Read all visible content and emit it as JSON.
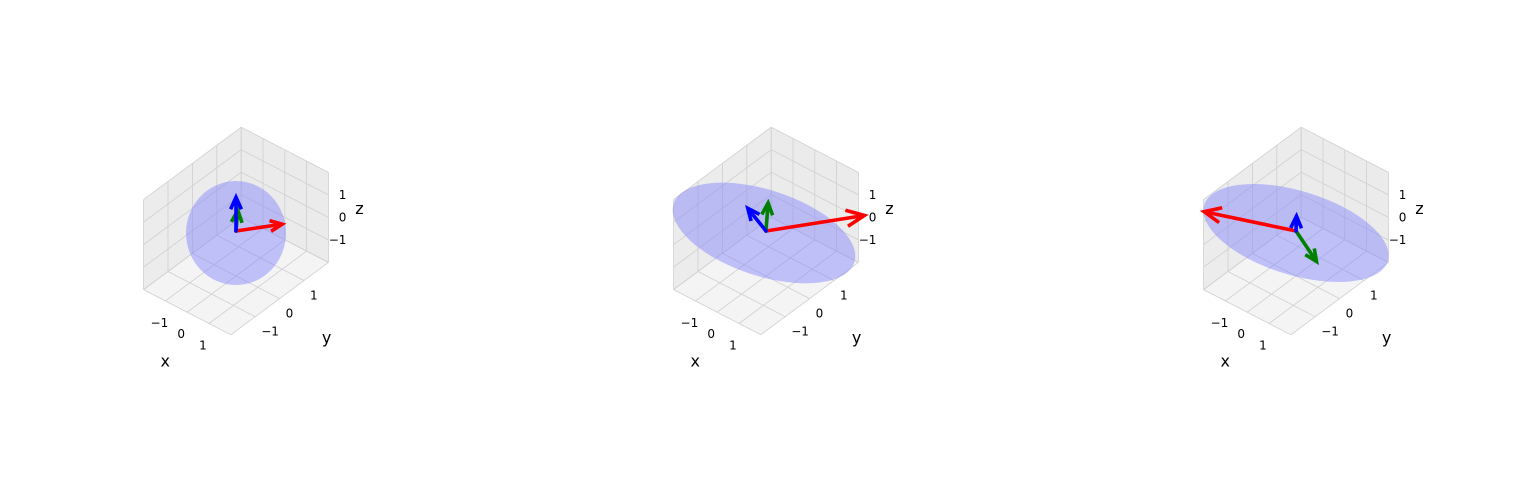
{
  "chart_data": [
    {
      "type": "3d-quiver-ellipsoid",
      "xlabel": "x",
      "ylabel": "y",
      "zlabel": "z",
      "x_ticks": [
        "−1",
        "0",
        "1"
      ],
      "y_ticks": [
        "−1",
        "0",
        "1"
      ],
      "z_ticks": [
        "−1",
        "0",
        "1"
      ],
      "xlim": [
        -2,
        2
      ],
      "ylim": [
        -2,
        2
      ],
      "zlim": [
        -2,
        2
      ],
      "grid": true,
      "ellipsoid_color": "#8080ff",
      "vectors": [
        {
          "color": "#ff0000",
          "components": [
            1,
            1,
            0
          ]
        },
        {
          "color": "#008000",
          "components": [
            -0.7,
            0.7,
            0
          ]
        },
        {
          "color": "#0000ff",
          "components": [
            0,
            0,
            1.5
          ]
        }
      ]
    },
    {
      "type": "3d-quiver-ellipsoid",
      "xlabel": "x",
      "ylabel": "y",
      "zlabel": "z",
      "x_ticks": [
        "−1",
        "0",
        "1"
      ],
      "y_ticks": [
        "−1",
        "0",
        "1"
      ],
      "z_ticks": [
        "−1",
        "0",
        "1"
      ],
      "xlim": [
        -2,
        2
      ],
      "ylim": [
        -2,
        2
      ],
      "zlim": [
        -2,
        2
      ],
      "grid": true,
      "ellipsoid_color": "#8080ff",
      "vectors": [
        {
          "color": "#ff0000",
          "components": [
            2.5,
            1.8,
            0.5
          ]
        },
        {
          "color": "#008000",
          "components": [
            -0.8,
            0.8,
            0.2
          ]
        },
        {
          "color": "#0000ff",
          "components": [
            -0.5,
            -0.3,
            1
          ]
        }
      ]
    },
    {
      "type": "3d-quiver-ellipsoid",
      "xlabel": "x",
      "ylabel": "y",
      "zlabel": "z",
      "x_ticks": [
        "−1",
        "0",
        "1"
      ],
      "y_ticks": [
        "−1",
        "0",
        "1"
      ],
      "z_ticks": [
        "−1",
        "0",
        "1"
      ],
      "xlim": [
        -2,
        2
      ],
      "ylim": [
        -2,
        2
      ],
      "zlim": [
        -2,
        2
      ],
      "grid": true,
      "ellipsoid_color": "#8080ff",
      "vectors": [
        {
          "color": "#ff0000",
          "components": [
            -2.2,
            -1.8,
            1.2
          ]
        },
        {
          "color": "#008000",
          "components": [
            1.5,
            -0.5,
            -0.2
          ]
        },
        {
          "color": "#0000ff",
          "components": [
            -0.2,
            0.2,
            0.4
          ]
        }
      ]
    }
  ]
}
